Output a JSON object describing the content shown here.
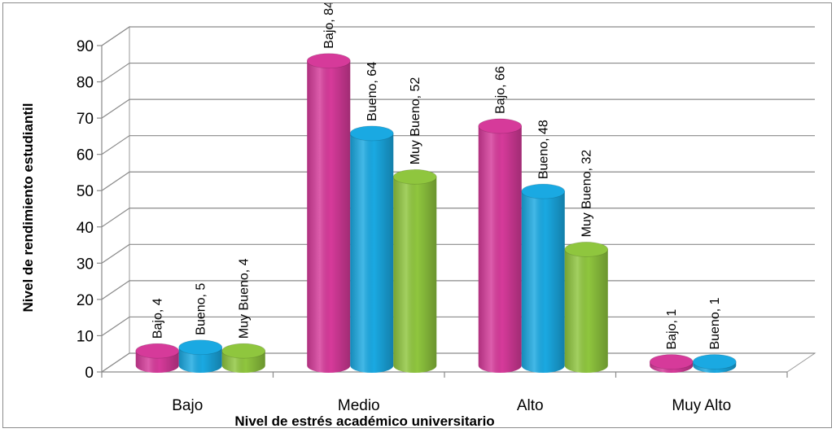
{
  "chart_data": {
    "type": "bar",
    "title": "",
    "xlabel": "Nivel de estrés académico universitario",
    "ylabel": "Nivel de rendimiento estudiantil",
    "categories": [
      "Bajo",
      "Medio",
      "Alto",
      "Muy Alto"
    ],
    "series": [
      {
        "name": "Bajo",
        "values": [
          4,
          84,
          66,
          1
        ],
        "color": "#d63a9a"
      },
      {
        "name": "Bueno",
        "values": [
          5,
          64,
          48,
          1
        ],
        "color": "#1aa9e2"
      },
      {
        "name": "Muy Bueno",
        "values": [
          4,
          52,
          32,
          null
        ],
        "color": "#8fc63e"
      }
    ],
    "ylim": [
      0,
      90
    ],
    "yticks": [
      0,
      10,
      20,
      30,
      40,
      50,
      60,
      70,
      80,
      90
    ],
    "grid": true,
    "legend": "none",
    "data_label_format": "{series}, {value}",
    "style": "3d-cylinder"
  }
}
